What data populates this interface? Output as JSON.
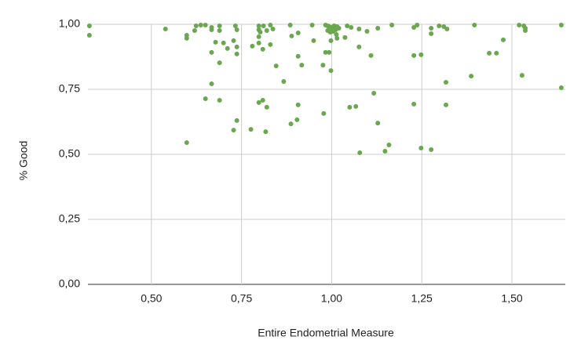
{
  "chart_data": {
    "type": "scatter",
    "x_label": "Entire Endometrial Measure",
    "y_label": "% Good",
    "x": [
      0.328,
      0.328,
      0.539,
      0.598,
      0.598,
      0.598,
      0.62,
      0.624,
      0.637,
      0.65,
      0.667,
      0.667,
      0.689,
      0.689,
      0.733,
      0.737,
      0.678,
      0.667,
      0.689,
      0.7,
      0.711,
      0.728,
      0.737,
      0.737,
      0.667,
      0.65,
      0.689,
      0.737,
      0.728,
      0.776,
      0.78,
      0.798,
      0.798,
      0.802,
      0.811,
      0.82,
      0.83,
      0.837,
      0.798,
      0.798,
      0.809,
      0.83,
      0.846,
      0.798,
      0.809,
      0.82,
      0.817,
      0.867,
      0.885,
      0.889,
      0.907,
      0.907,
      0.917,
      0.887,
      0.904,
      0.907,
      0.946,
      0.95,
      0.976,
      0.983,
      0.993,
      0.998,
      0.978,
      0.983,
      0.989,
      0.993,
      0.998,
      1.002,
      1.007,
      1.011,
      1.015,
      1.02,
      0.989,
      0.996,
      1.004,
      1.013,
      0.998,
      1.015,
      1.037,
      1.043,
      1.054,
      1.05,
      1.067,
      1.076,
      1.076,
      1.078,
      1.098,
      1.109,
      1.117,
      1.128,
      1.128,
      1.148,
      1.159,
      1.167,
      1.228,
      1.237,
      1.228,
      1.248,
      1.228,
      1.248,
      1.276,
      1.276,
      1.276,
      1.298,
      1.311,
      1.32,
      1.317,
      1.317,
      1.387,
      1.396,
      1.437,
      1.457,
      1.476,
      1.52,
      1.528,
      1.533,
      1.537,
      1.537,
      1.637,
      1.637
    ],
    "series": [
      {
        "color": "#6aa84f",
        "values": [
          0.994,
          0.958,
          0.982,
          0.958,
          0.946,
          0.545,
          0.976,
          0.994,
          0.997,
          0.997,
          0.988,
          0.979,
          0.994,
          0.976,
          0.994,
          0.979,
          0.931,
          0.892,
          0.852,
          0.928,
          0.907,
          0.937,
          0.913,
          0.886,
          0.771,
          0.714,
          0.708,
          0.63,
          0.593,
          0.596,
          0.916,
          0.994,
          0.979,
          0.97,
          0.994,
          0.976,
          0.997,
          0.982,
          0.952,
          0.928,
          0.904,
          0.922,
          0.84,
          0.699,
          0.708,
          0.681,
          0.587,
          0.78,
          0.997,
          0.955,
          0.967,
          0.877,
          0.843,
          0.617,
          0.633,
          0.69,
          0.997,
          0.937,
          0.843,
          0.892,
          0.892,
          0.822,
          0.657,
          0.997,
          0.994,
          0.991,
          0.988,
          0.982,
          0.994,
          0.979,
          0.991,
          0.985,
          0.976,
          0.97,
          0.973,
          0.961,
          0.937,
          0.946,
          0.949,
          0.994,
          0.988,
          0.681,
          0.684,
          0.982,
          0.913,
          0.506,
          0.973,
          0.88,
          0.735,
          0.985,
          0.62,
          0.512,
          0.536,
          0.997,
          0.988,
          0.997,
          0.88,
          0.883,
          0.693,
          0.524,
          0.985,
          0.964,
          0.518,
          0.994,
          0.991,
          0.982,
          0.777,
          0.69,
          0.801,
          0.997,
          0.889,
          0.889,
          0.94,
          0.997,
          0.804,
          0.994,
          0.985,
          0.976,
          0.997,
          0.756
        ]
      }
    ],
    "xlim": [
      0.324,
      1.648
    ],
    "ylim": [
      0,
      1
    ],
    "xticks": [
      {
        "value": 0.5,
        "label": "0,50"
      },
      {
        "value": 0.75,
        "label": "0,75"
      },
      {
        "value": 1,
        "label": "1,00"
      },
      {
        "value": 1.25,
        "label": "1,25"
      },
      {
        "value": 1.5,
        "label": "1,50"
      }
    ],
    "yticks": [
      {
        "value": 0,
        "label": "0,00"
      },
      {
        "value": 0.25,
        "label": "0,25"
      },
      {
        "value": 0.5,
        "label": "0,50"
      },
      {
        "value": 0.75,
        "label": "0,75"
      },
      {
        "value": 1,
        "label": "1,00"
      }
    ],
    "grid": true
  }
}
